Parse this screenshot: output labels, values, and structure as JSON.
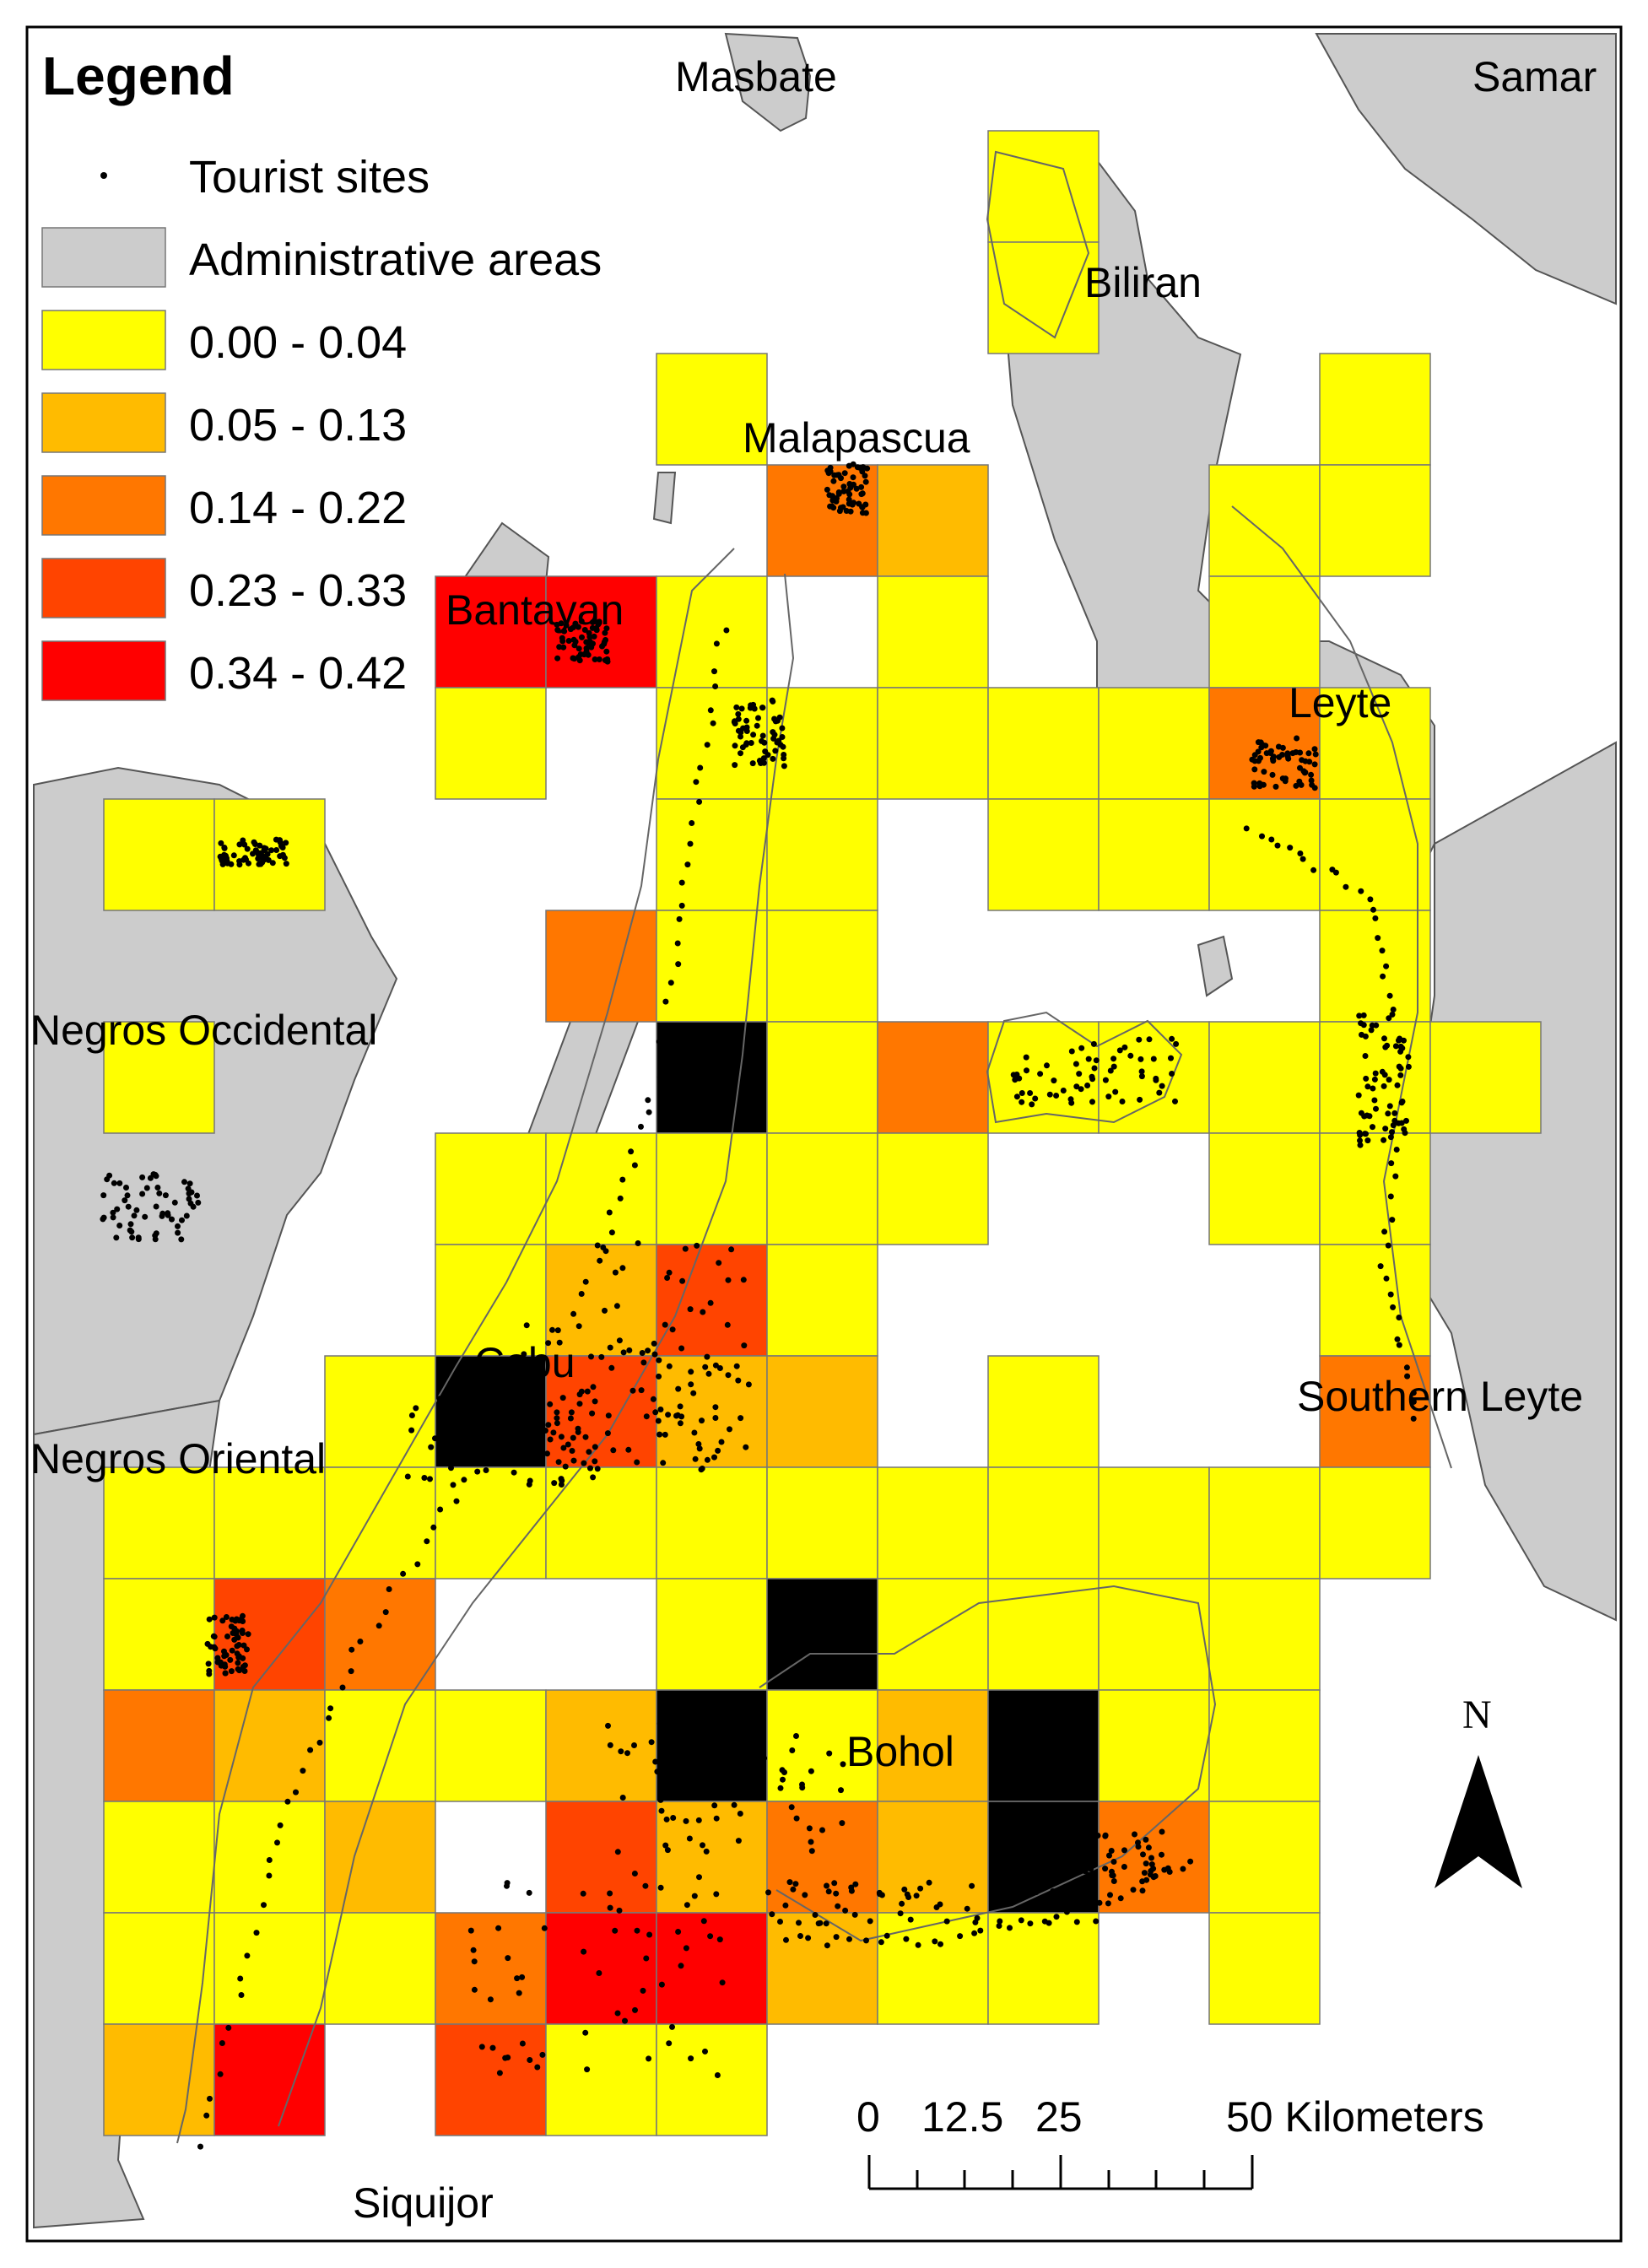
{
  "legend": {
    "title": "Legend",
    "items": [
      {
        "label": "Tourist sites",
        "kind": "dot"
      },
      {
        "label": "Administrative areas",
        "color": "#cccccc"
      },
      {
        "label": "0.00 - 0.04",
        "color": "#ffff00"
      },
      {
        "label": "0.05 - 0.13",
        "color": "#ffbb00"
      },
      {
        "label": "0.14 - 0.22",
        "color": "#ff7700"
      },
      {
        "label": "0.23 - 0.33",
        "color": "#ff4400"
      },
      {
        "label": "0.34 - 0.42",
        "color": "#ff0000"
      }
    ]
  },
  "places": [
    "Masbate",
    "Samar",
    "Biliran",
    "Malapascua",
    "Bantayan",
    "Leyte",
    "Negros Occidental",
    "Cebu",
    "Negros Oriental",
    "Southern Leyte",
    "Bohol",
    "Siquijor"
  ],
  "scale_bar": {
    "labels": [
      "0",
      "12.5",
      "25",
      "50 Kilometers"
    ],
    "values": [
      0,
      12.5,
      25,
      50
    ],
    "unit": "Kilometers"
  },
  "north_arrow": {
    "label": "N",
    "icon": "north-arrow-icon"
  },
  "grid": {
    "columns": 13,
    "rows": 19,
    "class_colors": [
      "#ffff00",
      "#ffbb00",
      "#ff7700",
      "#ff4400",
      "#ff0000"
    ],
    "admin_color": "#cccccc",
    "cells": [
      [
        8,
        0,
        0
      ],
      [
        8,
        1,
        0
      ],
      [
        5,
        2,
        0
      ],
      [
        11,
        2,
        0
      ],
      [
        6,
        3,
        2
      ],
      [
        7,
        3,
        1
      ],
      [
        10,
        3,
        0
      ],
      [
        11,
        3,
        0
      ],
      [
        3,
        4,
        4
      ],
      [
        4,
        4,
        4
      ],
      [
        5,
        4,
        0
      ],
      [
        7,
        4,
        0
      ],
      [
        10,
        4,
        0
      ],
      [
        3,
        5,
        0
      ],
      [
        5,
        5,
        0
      ],
      [
        6,
        5,
        0
      ],
      [
        7,
        5,
        0
      ],
      [
        8,
        5,
        0
      ],
      [
        9,
        5,
        0
      ],
      [
        10,
        5,
        2
      ],
      [
        11,
        5,
        0
      ],
      [
        0,
        6,
        0
      ],
      [
        1,
        6,
        0
      ],
      [
        5,
        6,
        0
      ],
      [
        6,
        6,
        0
      ],
      [
        8,
        6,
        0
      ],
      [
        9,
        6,
        0
      ],
      [
        10,
        6,
        0
      ],
      [
        11,
        6,
        0
      ],
      [
        4,
        7,
        2
      ],
      [
        5,
        7,
        0
      ],
      [
        6,
        7,
        0
      ],
      [
        11,
        7,
        0
      ],
      [
        0,
        8,
        0
      ],
      [
        5,
        8,
        5
      ],
      [
        6,
        8,
        0
      ],
      [
        7,
        8,
        2
      ],
      [
        8,
        8,
        0
      ],
      [
        9,
        8,
        0
      ],
      [
        10,
        8,
        0
      ],
      [
        11,
        8,
        0
      ],
      [
        12,
        8,
        0
      ],
      [
        3,
        9,
        0
      ],
      [
        4,
        9,
        0
      ],
      [
        5,
        9,
        0
      ],
      [
        6,
        9,
        0
      ],
      [
        7,
        9,
        0
      ],
      [
        10,
        9,
        0
      ],
      [
        11,
        9,
        0
      ],
      [
        3,
        10,
        0
      ],
      [
        4,
        10,
        1
      ],
      [
        5,
        10,
        3
      ],
      [
        6,
        10,
        0
      ],
      [
        11,
        10,
        0
      ],
      [
        2,
        11,
        0
      ],
      [
        3,
        11,
        5
      ],
      [
        4,
        11,
        3
      ],
      [
        5,
        11,
        1
      ],
      [
        6,
        11,
        1
      ],
      [
        8,
        11,
        0
      ],
      [
        11,
        11,
        2
      ],
      [
        0,
        12,
        0
      ],
      [
        1,
        12,
        0
      ],
      [
        2,
        12,
        0
      ],
      [
        3,
        12,
        0
      ],
      [
        4,
        12,
        0
      ],
      [
        5,
        12,
        0
      ],
      [
        6,
        12,
        0
      ],
      [
        7,
        12,
        0
      ],
      [
        8,
        12,
        0
      ],
      [
        9,
        12,
        0
      ],
      [
        10,
        12,
        0
      ],
      [
        11,
        12,
        0
      ],
      [
        0,
        13,
        0
      ],
      [
        1,
        13,
        3
      ],
      [
        2,
        13,
        2
      ],
      [
        5,
        13,
        0
      ],
      [
        6,
        13,
        5
      ],
      [
        7,
        13,
        0
      ],
      [
        8,
        13,
        0
      ],
      [
        9,
        13,
        0
      ],
      [
        10,
        13,
        0
      ],
      [
        0,
        14,
        2
      ],
      [
        1,
        14,
        1
      ],
      [
        2,
        14,
        0
      ],
      [
        3,
        14,
        0
      ],
      [
        4,
        14,
        1
      ],
      [
        5,
        14,
        5
      ],
      [
        6,
        14,
        0
      ],
      [
        7,
        14,
        1
      ],
      [
        8,
        14,
        5
      ],
      [
        9,
        14,
        0
      ],
      [
        10,
        14,
        0
      ],
      [
        0,
        15,
        0
      ],
      [
        1,
        15,
        0
      ],
      [
        2,
        15,
        1
      ],
      [
        4,
        15,
        3
      ],
      [
        5,
        15,
        1
      ],
      [
        6,
        15,
        2
      ],
      [
        7,
        15,
        1
      ],
      [
        8,
        15,
        5
      ],
      [
        9,
        15,
        2
      ],
      [
        10,
        15,
        0
      ],
      [
        0,
        16,
        0
      ],
      [
        1,
        16,
        0
      ],
      [
        2,
        16,
        0
      ],
      [
        3,
        16,
        2
      ],
      [
        4,
        16,
        4
      ],
      [
        5,
        16,
        4
      ],
      [
        6,
        16,
        1
      ],
      [
        7,
        16,
        0
      ],
      [
        8,
        16,
        0
      ],
      [
        10,
        16,
        0
      ],
      [
        0,
        17,
        1
      ],
      [
        1,
        17,
        4
      ],
      [
        3,
        17,
        3
      ],
      [
        4,
        17,
        0
      ],
      [
        5,
        17,
        0
      ]
    ]
  }
}
